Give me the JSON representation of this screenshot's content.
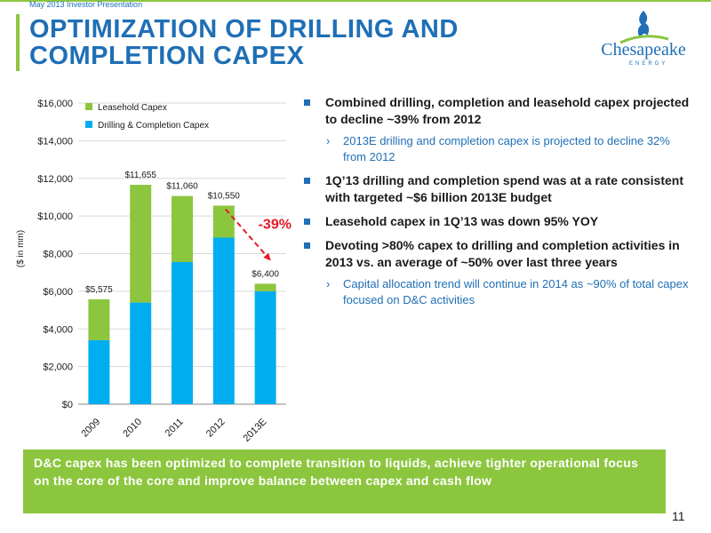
{
  "header": {
    "eyebrow": "May 2013 Investor Presentation",
    "title": "OPTIMIZATION OF DRILLING AND COMPLETION CAPEX"
  },
  "logo": {
    "name": "Chesapeake",
    "sub": "ENERGY"
  },
  "colors": {
    "brand_blue": "#1f6fb5",
    "green": "#8cc63f",
    "cyan": "#00aeef",
    "red": "#e31b23"
  },
  "chart_data": {
    "type": "bar",
    "stacked": true,
    "categories": [
      "2009",
      "2010",
      "2011",
      "2012",
      "2013E"
    ],
    "series": [
      {
        "name": "Drilling & Completion Capex",
        "color": "#00aeef",
        "values": [
          3400,
          5400,
          7550,
          8850,
          6000
        ]
      },
      {
        "name": "Leasehold Capex",
        "color": "#8cc63f",
        "values": [
          2175,
          6255,
          3510,
          1700,
          400
        ]
      }
    ],
    "totals": [
      "$5,575",
      "$11,655",
      "$11,060",
      "$10,550",
      "$6,400"
    ],
    "total_values": [
      5575,
      11655,
      11060,
      10550,
      6400
    ],
    "ylabel": "($ in mm)",
    "ylim": [
      0,
      16000
    ],
    "yticks": [
      0,
      2000,
      4000,
      6000,
      8000,
      10000,
      12000,
      14000,
      16000
    ],
    "ytick_labels": [
      "$0",
      "$2,000",
      "$4,000",
      "$6,000",
      "$8,000",
      "$10,000",
      "$12,000",
      "$14,000",
      "$16,000"
    ],
    "legend_position": "top-left",
    "annotation": {
      "text": "-39%",
      "from": "2012",
      "to": "2013E"
    }
  },
  "bullets": [
    {
      "level": 1,
      "text": "Combined drilling, completion and leasehold capex projected to decline ~39% from 2012"
    },
    {
      "level": 2,
      "text": "2013E drilling and completion capex is projected to decline 32% from 2012"
    },
    {
      "level": 1,
      "text": "1Q’13 drilling and completion spend was at a rate consistent with targeted ~$6 billion 2013E budget"
    },
    {
      "level": 1,
      "text": "Leasehold capex in 1Q’13 was down 95% YOY"
    },
    {
      "level": 1,
      "text": "Devoting >80% capex to drilling and completion activities in 2013 vs. an average of ~50% over last three years"
    },
    {
      "level": 2,
      "text": "Capital allocation trend will continue in 2014 as ~90% of total capex focused on D&C activities"
    }
  ],
  "banner": "D&C capex has been optimized to complete transition to liquids, achieve tighter operational focus on the core of the core and improve balance between capex and cash flow",
  "page_number": "11"
}
